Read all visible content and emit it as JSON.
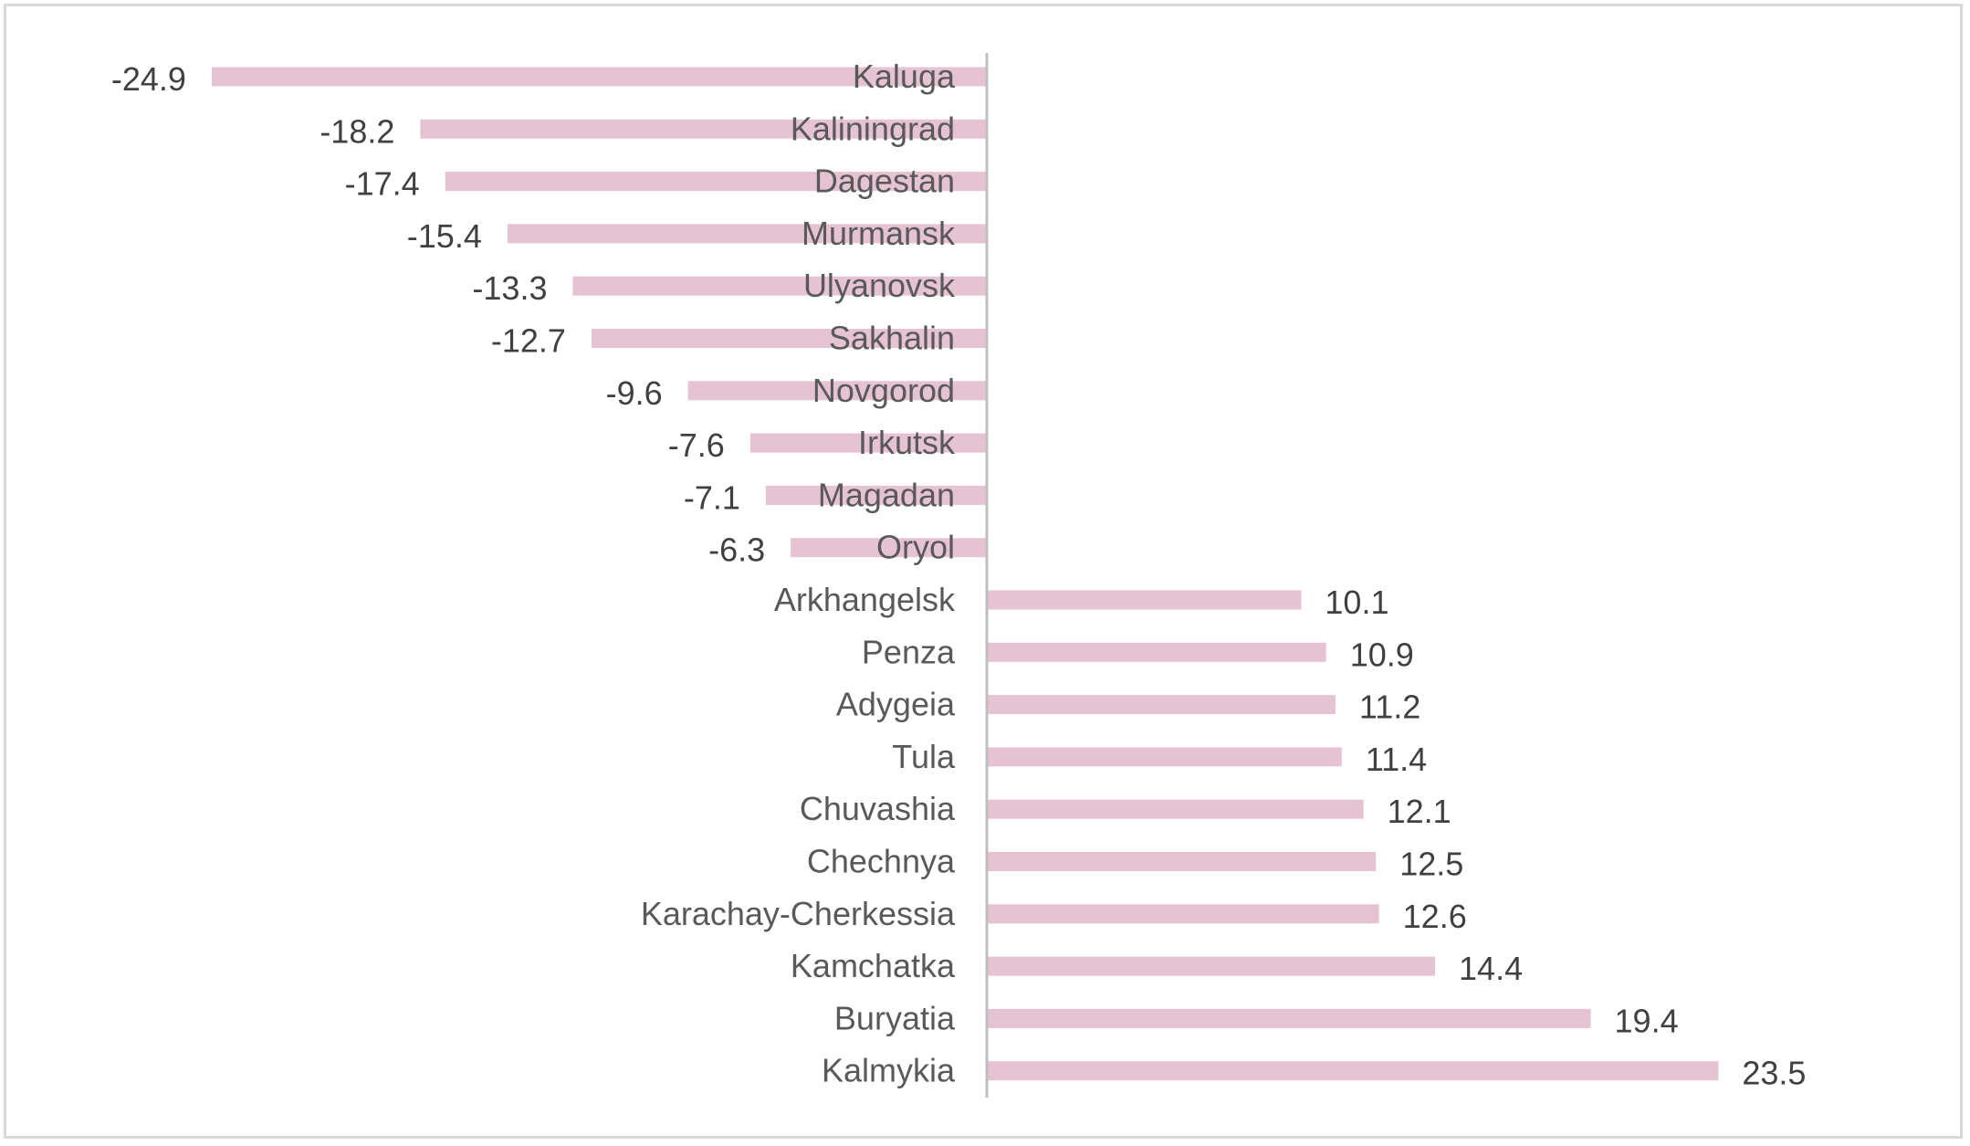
{
  "chart_data": {
    "type": "bar",
    "orientation": "horizontal",
    "categories": [
      "Kaluga",
      "Kaliningrad",
      "Dagestan",
      "Murmansk",
      "Ulyanovsk",
      "Sakhalin",
      "Novgorod",
      "Irkutsk",
      "Magadan",
      "Oryol",
      "Arkhangelsk",
      "Penza",
      "Adygeia",
      "Tula",
      "Chuvashia",
      "Chechnya",
      "Karachay-Cherkessia",
      "Kamchatka",
      "Buryatia",
      "Kalmykia"
    ],
    "values": [
      -24.9,
      -18.2,
      -17.4,
      -15.4,
      -13.3,
      -12.7,
      -9.6,
      -7.6,
      -7.1,
      -6.3,
      10.1,
      10.9,
      11.2,
      11.4,
      12.1,
      12.5,
      12.6,
      14.4,
      19.4,
      23.5
    ],
    "value_labels": [
      "-24.9",
      "-18.2",
      "-17.4",
      "-15.4",
      "-13.3",
      "-12.7",
      "-9.6",
      "-7.6",
      "-7.1",
      "-6.3",
      "10.1",
      "10.9",
      "11.2",
      "11.4",
      "12.1",
      "12.5",
      "12.6",
      "14.4",
      "19.4",
      "23.5"
    ],
    "bar_color": "#e6c3d3",
    "axis_color": "#bfbfbf",
    "gridlines": false,
    "legend": "none"
  }
}
